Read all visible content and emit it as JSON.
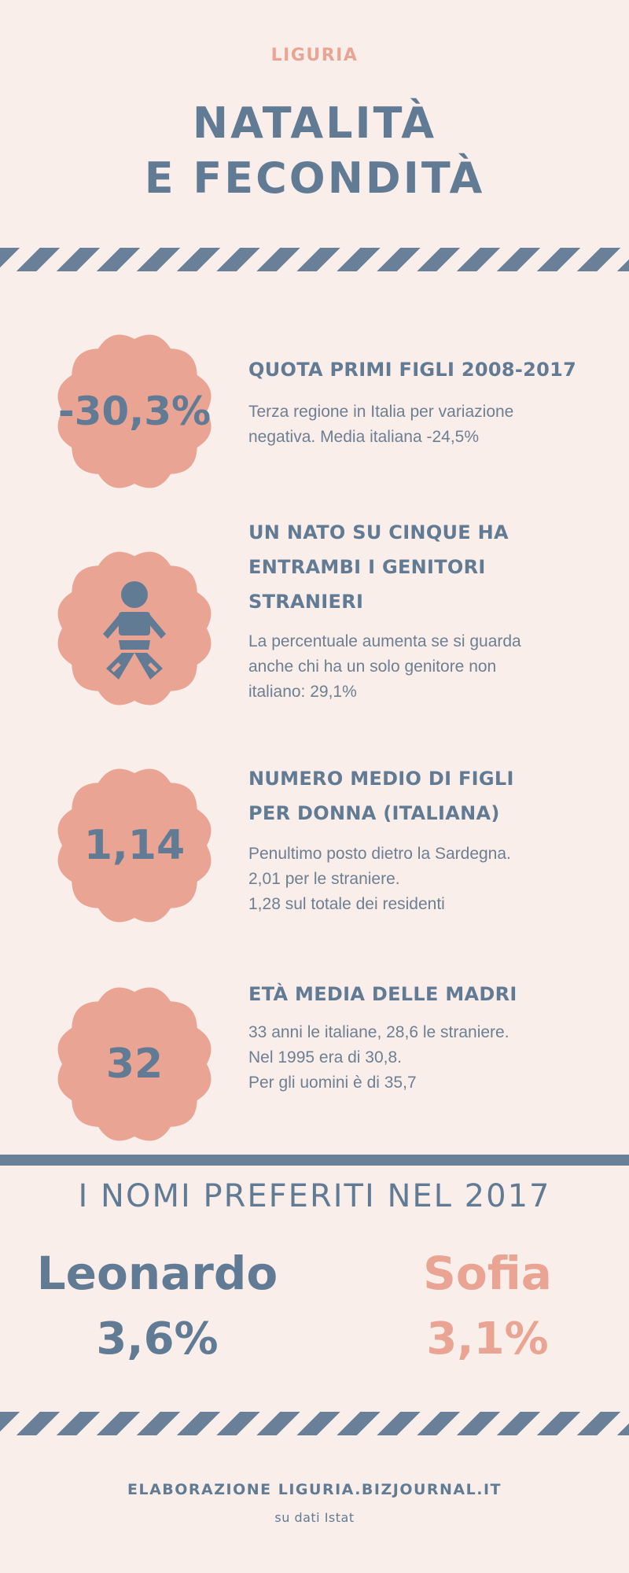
{
  "header": {
    "region": "LIGURIA",
    "title_line1": "NATALITÀ",
    "title_line2": "E FECONDITÀ"
  },
  "colors": {
    "background": "#f9eee9",
    "primary_blue": "#627b95",
    "accent_salmon": "#e9a493"
  },
  "stats": [
    {
      "badge": "-30,3%",
      "title_lines": [
        "QUOTA PRIMI FIGLI 2008-2017"
      ],
      "desc_lines": [
        "Terza regione in Italia per variazione",
        "negativa. Media italiana -24,5%"
      ]
    },
    {
      "badge_icon": "baby-icon",
      "title_lines": [
        "UN NATO SU CINQUE HA",
        "ENTRAMBI I GENITORI",
        "STRANIERI"
      ],
      "desc_lines": [
        "La percentuale aumenta se si guarda",
        "anche chi ha un solo genitore non",
        "italiano: 29,1%"
      ]
    },
    {
      "badge": "1,14",
      "title_lines": [
        "NUMERO MEDIO DI FIGLI",
        "PER DONNA (ITALIANA)"
      ],
      "desc_lines": [
        "Penultimo posto dietro la Sardegna.",
        "2,01 per le straniere.",
        "1,28 sul totale dei residenti"
      ]
    },
    {
      "badge": "32",
      "title_lines": [
        "ETÀ MEDIA DELLE MADRI"
      ],
      "desc_lines": [
        "33 anni le italiane, 28,6 le straniere.",
        "Nel 1995 era di 30,8.",
        "Per gli uomini è di 35,7"
      ]
    }
  ],
  "names": {
    "heading": "I NOMI PREFERITI NEL 2017",
    "male_name": "Leonardo",
    "male_pct": "3,6%",
    "female_name": "Sofia",
    "female_pct": "3,1%"
  },
  "footer": {
    "credit": "ELABORAZIONE LIGURIA.BIZJOURNAL.IT",
    "source": "su dati Istat"
  }
}
